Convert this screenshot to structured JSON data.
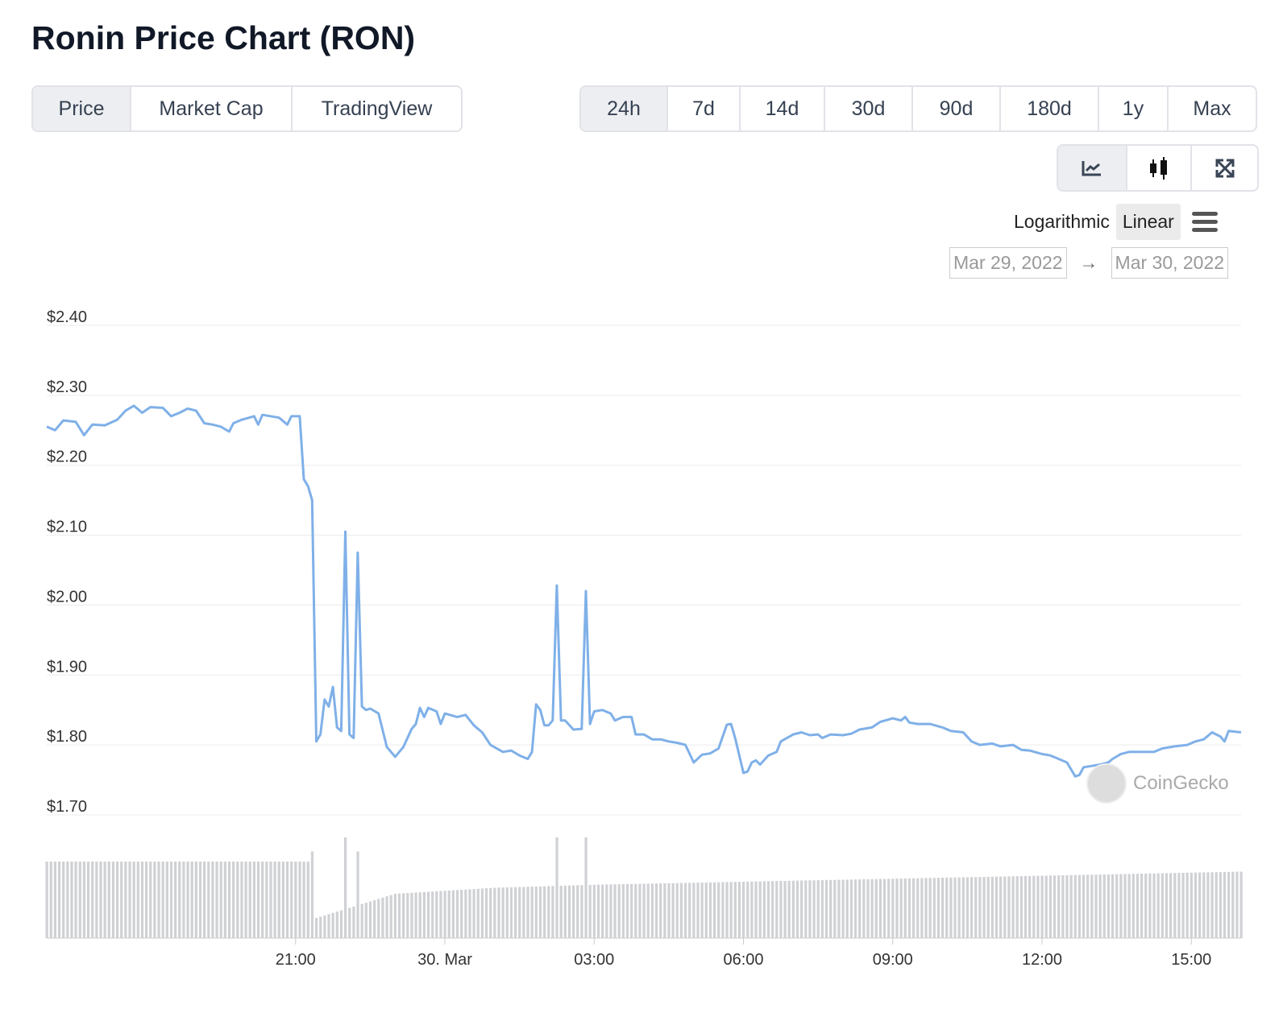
{
  "title": "Ronin Price Chart (RON)",
  "type_tabs": [
    {
      "label": "Price",
      "active": true
    },
    {
      "label": "Market Cap"
    },
    {
      "label": "TradingView"
    }
  ],
  "range_tabs": [
    {
      "label": "24h",
      "active": true
    },
    {
      "label": "7d"
    },
    {
      "label": "14d"
    },
    {
      "label": "30d"
    },
    {
      "label": "90d"
    },
    {
      "label": "180d"
    },
    {
      "label": "1y"
    },
    {
      "label": "Max"
    }
  ],
  "chart_icons": [
    {
      "name": "line-chart-icon",
      "active": true
    },
    {
      "name": "candlestick-icon"
    },
    {
      "name": "fullscreen-icon"
    }
  ],
  "scale": {
    "log_label": "Logarithmic",
    "linear_label": "Linear",
    "selected": "Linear"
  },
  "date_range": {
    "from": "Mar 29, 2022",
    "arrow": "→",
    "to": "Mar 30, 2022"
  },
  "watermark": "CoinGecko",
  "colors": {
    "line": "#7fb0e8",
    "volume": "#cfd1d4",
    "grid": "#ececec"
  },
  "chart_data": {
    "type": "line",
    "ylim": [
      1.7,
      2.4
    ],
    "y_ticks": [
      "$2.40",
      "$2.30",
      "$2.20",
      "$2.10",
      "$2.00",
      "$1.90",
      "$1.80",
      "$1.70"
    ],
    "y_tick_values": [
      2.4,
      2.3,
      2.2,
      2.1,
      2.0,
      1.9,
      1.8,
      1.7
    ],
    "x_ticks": [
      "21:00",
      "30. Mar",
      "03:00",
      "06:00",
      "09:00",
      "12:00",
      "15:00"
    ],
    "x_tick_values": [
      "2022-03-29T21:00",
      "2022-03-30T00:00",
      "2022-03-30T03:00",
      "2022-03-30T06:00",
      "2022-03-30T09:00",
      "2022-03-30T12:00",
      "2022-03-30T15:00"
    ],
    "xlim": [
      "2022-03-29T16:00",
      "2022-03-30T16:00"
    ],
    "grid": true,
    "price": [
      [
        "2022-03-29T16:00",
        2.255
      ],
      [
        "2022-03-29T16:10",
        2.25
      ],
      [
        "2022-03-29T16:20",
        2.264
      ],
      [
        "2022-03-29T16:35",
        2.262
      ],
      [
        "2022-03-29T16:45",
        2.243
      ],
      [
        "2022-03-29T16:55",
        2.258
      ],
      [
        "2022-03-29T17:10",
        2.257
      ],
      [
        "2022-03-29T17:25",
        2.265
      ],
      [
        "2022-03-29T17:35",
        2.278
      ],
      [
        "2022-03-29T17:45",
        2.285
      ],
      [
        "2022-03-29T17:55",
        2.275
      ],
      [
        "2022-03-29T18:05",
        2.283
      ],
      [
        "2022-03-29T18:20",
        2.282
      ],
      [
        "2022-03-29T18:30",
        2.27
      ],
      [
        "2022-03-29T18:40",
        2.275
      ],
      [
        "2022-03-29T18:50",
        2.281
      ],
      [
        "2022-03-29T19:00",
        2.278
      ],
      [
        "2022-03-29T19:10",
        2.26
      ],
      [
        "2022-03-29T19:20",
        2.258
      ],
      [
        "2022-03-29T19:30",
        2.255
      ],
      [
        "2022-03-29T19:40",
        2.248
      ],
      [
        "2022-03-29T19:45",
        2.26
      ],
      [
        "2022-03-29T19:55",
        2.265
      ],
      [
        "2022-03-29T20:10",
        2.27
      ],
      [
        "2022-03-29T20:15",
        2.258
      ],
      [
        "2022-03-29T20:20",
        2.272
      ],
      [
        "2022-03-29T20:40",
        2.268
      ],
      [
        "2022-03-29T20:50",
        2.258
      ],
      [
        "2022-03-29T20:55",
        2.27
      ],
      [
        "2022-03-29T21:05",
        2.27
      ],
      [
        "2022-03-29T21:10",
        2.18
      ],
      [
        "2022-03-29T21:15",
        2.17
      ],
      [
        "2022-03-29T21:20",
        2.15
      ],
      [
        "2022-03-29T21:25",
        1.805
      ],
      [
        "2022-03-29T21:30",
        1.815
      ],
      [
        "2022-03-29T21:35",
        1.865
      ],
      [
        "2022-03-29T21:40",
        1.855
      ],
      [
        "2022-03-29T21:45",
        1.883
      ],
      [
        "2022-03-29T21:50",
        1.825
      ],
      [
        "2022-03-29T21:55",
        1.82
      ],
      [
        "2022-03-29T22:00",
        2.105
      ],
      [
        "2022-03-29T22:05",
        1.815
      ],
      [
        "2022-03-29T22:10",
        1.81
      ],
      [
        "2022-03-29T22:15",
        2.075
      ],
      [
        "2022-03-29T22:20",
        1.855
      ],
      [
        "2022-03-29T22:25",
        1.85
      ],
      [
        "2022-03-29T22:30",
        1.852
      ],
      [
        "2022-03-29T22:40",
        1.845
      ],
      [
        "2022-03-29T22:50",
        1.797
      ],
      [
        "2022-03-29T23:00",
        1.783
      ],
      [
        "2022-03-29T23:10",
        1.797
      ],
      [
        "2022-03-29T23:20",
        1.823
      ],
      [
        "2022-03-29T23:25",
        1.83
      ],
      [
        "2022-03-29T23:30",
        1.853
      ],
      [
        "2022-03-29T23:35",
        1.84
      ],
      [
        "2022-03-29T23:40",
        1.853
      ],
      [
        "2022-03-29T23:50",
        1.848
      ],
      [
        "2022-03-29T23:55",
        1.83
      ],
      [
        "2022-03-30T00:00",
        1.845
      ],
      [
        "2022-03-30T00:15",
        1.84
      ],
      [
        "2022-03-30T00:25",
        1.843
      ],
      [
        "2022-03-30T00:35",
        1.828
      ],
      [
        "2022-03-30T00:45",
        1.818
      ],
      [
        "2022-03-30T00:55",
        1.8
      ],
      [
        "2022-03-30T01:10",
        1.79
      ],
      [
        "2022-03-30T01:20",
        1.792
      ],
      [
        "2022-03-30T01:30",
        1.785
      ],
      [
        "2022-03-30T01:40",
        1.78
      ],
      [
        "2022-03-30T01:45",
        1.79
      ],
      [
        "2022-03-30T01:50",
        1.858
      ],
      [
        "2022-03-30T01:55",
        1.85
      ],
      [
        "2022-03-30T02:00",
        1.828
      ],
      [
        "2022-03-30T02:05",
        1.828
      ],
      [
        "2022-03-30T02:10",
        1.835
      ],
      [
        "2022-03-30T02:15",
        2.028
      ],
      [
        "2022-03-30T02:20",
        1.835
      ],
      [
        "2022-03-30T02:25",
        1.835
      ],
      [
        "2022-03-30T02:35",
        1.822
      ],
      [
        "2022-03-30T02:45",
        1.823
      ],
      [
        "2022-03-30T02:50",
        2.02
      ],
      [
        "2022-03-30T02:55",
        1.83
      ],
      [
        "2022-03-30T03:00",
        1.848
      ],
      [
        "2022-03-30T03:10",
        1.85
      ],
      [
        "2022-03-30T03:20",
        1.845
      ],
      [
        "2022-03-30T03:25",
        1.835
      ],
      [
        "2022-03-30T03:35",
        1.84
      ],
      [
        "2022-03-30T03:45",
        1.84
      ],
      [
        "2022-03-30T03:50",
        1.815
      ],
      [
        "2022-03-30T04:00",
        1.815
      ],
      [
        "2022-03-30T04:10",
        1.808
      ],
      [
        "2022-03-30T04:20",
        1.808
      ],
      [
        "2022-03-30T04:30",
        1.805
      ],
      [
        "2022-03-30T04:40",
        1.803
      ],
      [
        "2022-03-30T04:50",
        1.8
      ],
      [
        "2022-03-30T05:00",
        1.775
      ],
      [
        "2022-03-30T05:10",
        1.786
      ],
      [
        "2022-03-30T05:20",
        1.788
      ],
      [
        "2022-03-30T05:30",
        1.795
      ],
      [
        "2022-03-30T05:40",
        1.829
      ],
      [
        "2022-03-30T05:45",
        1.83
      ],
      [
        "2022-03-30T05:50",
        1.81
      ],
      [
        "2022-03-30T06:00",
        1.76
      ],
      [
        "2022-03-30T06:05",
        1.762
      ],
      [
        "2022-03-30T06:10",
        1.775
      ],
      [
        "2022-03-30T06:15",
        1.778
      ],
      [
        "2022-03-30T06:20",
        1.772
      ],
      [
        "2022-03-30T06:30",
        1.785
      ],
      [
        "2022-03-30T06:40",
        1.79
      ],
      [
        "2022-03-30T06:45",
        1.805
      ],
      [
        "2022-03-30T07:00",
        1.815
      ],
      [
        "2022-03-30T07:10",
        1.818
      ],
      [
        "2022-03-30T07:20",
        1.814
      ],
      [
        "2022-03-30T07:30",
        1.815
      ],
      [
        "2022-03-30T07:35",
        1.81
      ],
      [
        "2022-03-30T07:45",
        1.815
      ],
      [
        "2022-03-30T08:00",
        1.814
      ],
      [
        "2022-03-30T08:10",
        1.816
      ],
      [
        "2022-03-30T08:20",
        1.822
      ],
      [
        "2022-03-30T08:35",
        1.825
      ],
      [
        "2022-03-30T08:45",
        1.833
      ],
      [
        "2022-03-30T09:00",
        1.838
      ],
      [
        "2022-03-30T09:10",
        1.835
      ],
      [
        "2022-03-30T09:15",
        1.84
      ],
      [
        "2022-03-30T09:20",
        1.832
      ],
      [
        "2022-03-30T09:30",
        1.83
      ],
      [
        "2022-03-30T09:45",
        1.83
      ],
      [
        "2022-03-30T10:00",
        1.825
      ],
      [
        "2022-03-30T10:10",
        1.82
      ],
      [
        "2022-03-30T10:25",
        1.818
      ],
      [
        "2022-03-30T10:35",
        1.805
      ],
      [
        "2022-03-30T10:45",
        1.8
      ],
      [
        "2022-03-30T11:00",
        1.802
      ],
      [
        "2022-03-30T11:10",
        1.798
      ],
      [
        "2022-03-30T11:25",
        1.8
      ],
      [
        "2022-03-30T11:35",
        1.793
      ],
      [
        "2022-03-30T11:45",
        1.792
      ],
      [
        "2022-03-30T12:00",
        1.787
      ],
      [
        "2022-03-30T12:10",
        1.785
      ],
      [
        "2022-03-30T12:20",
        1.78
      ],
      [
        "2022-03-30T12:30",
        1.775
      ],
      [
        "2022-03-30T12:40",
        1.755
      ],
      [
        "2022-03-30T12:45",
        1.757
      ],
      [
        "2022-03-30T12:50",
        1.768
      ],
      [
        "2022-03-30T13:00",
        1.77
      ],
      [
        "2022-03-30T13:10",
        1.772
      ],
      [
        "2022-03-30T13:20",
        1.775
      ],
      [
        "2022-03-30T13:25",
        1.78
      ],
      [
        "2022-03-30T13:35",
        1.787
      ],
      [
        "2022-03-30T13:45",
        1.79
      ],
      [
        "2022-03-30T14:00",
        1.79
      ],
      [
        "2022-03-30T14:15",
        1.79
      ],
      [
        "2022-03-30T14:25",
        1.795
      ],
      [
        "2022-03-30T14:40",
        1.798
      ],
      [
        "2022-03-30T14:55",
        1.8
      ],
      [
        "2022-03-30T15:05",
        1.805
      ],
      [
        "2022-03-30T15:15",
        1.808
      ],
      [
        "2022-03-30T15:25",
        1.818
      ],
      [
        "2022-03-30T15:35",
        1.812
      ],
      [
        "2022-03-30T15:40",
        1.805
      ],
      [
        "2022-03-30T15:45",
        1.82
      ],
      [
        "2022-03-30T16:00",
        1.818
      ]
    ],
    "volume_relative": [
      [
        "2022-03-29T16:00",
        0.76
      ],
      [
        "2022-03-29T21:20",
        0.76
      ],
      [
        "2022-03-29T21:25",
        0.2
      ],
      [
        "2022-03-29T23:00",
        0.44
      ],
      [
        "2022-03-30T00:00",
        0.47
      ],
      [
        "2022-03-30T01:00",
        0.5
      ],
      [
        "2022-03-30T03:00",
        0.53
      ],
      [
        "2022-03-30T06:00",
        0.56
      ],
      [
        "2022-03-30T09:00",
        0.59
      ],
      [
        "2022-03-30T12:00",
        0.62
      ],
      [
        "2022-03-30T16:00",
        0.66
      ]
    ],
    "volume_spikes": [
      [
        "2022-03-29T21:20",
        0.86
      ],
      [
        "2022-03-29T22:00",
        1.0
      ],
      [
        "2022-03-29T22:15",
        0.86
      ],
      [
        "2022-03-30T02:15",
        1.0
      ],
      [
        "2022-03-30T02:50",
        1.0
      ]
    ]
  }
}
